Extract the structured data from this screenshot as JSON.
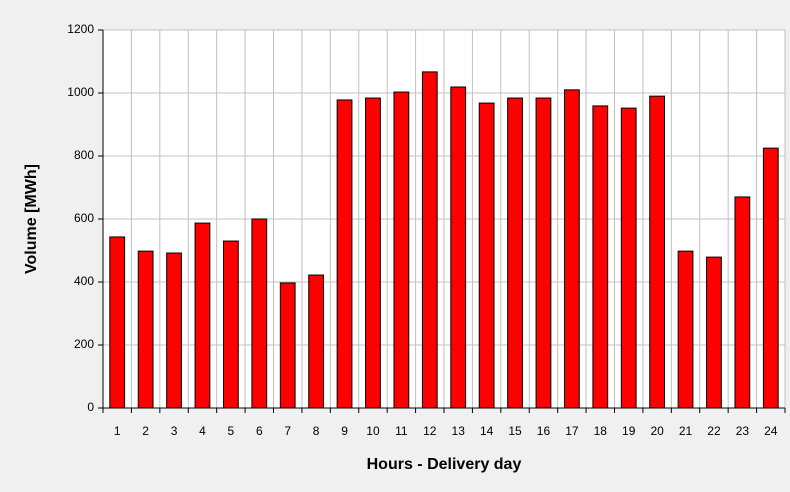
{
  "chart_data": {
    "type": "bar",
    "xlabel": "Hours - Delivery day",
    "ylabel": "Volume [MWh]",
    "categories": [
      "1",
      "2",
      "3",
      "4",
      "5",
      "6",
      "7",
      "8",
      "9",
      "10",
      "11",
      "12",
      "13",
      "14",
      "15",
      "16",
      "17",
      "18",
      "19",
      "20",
      "21",
      "22",
      "23",
      "24"
    ],
    "values": [
      543,
      498,
      492,
      587,
      530,
      600,
      397,
      422,
      978,
      984,
      1003,
      1067,
      1019,
      968,
      984,
      984,
      1010,
      959,
      952,
      990,
      498,
      479,
      670,
      825
    ],
    "color": "#ff0000",
    "ylim": [
      0,
      1200
    ],
    "yticks": [
      0,
      200,
      400,
      600,
      800,
      1000,
      1200
    ],
    "grid": true
  }
}
